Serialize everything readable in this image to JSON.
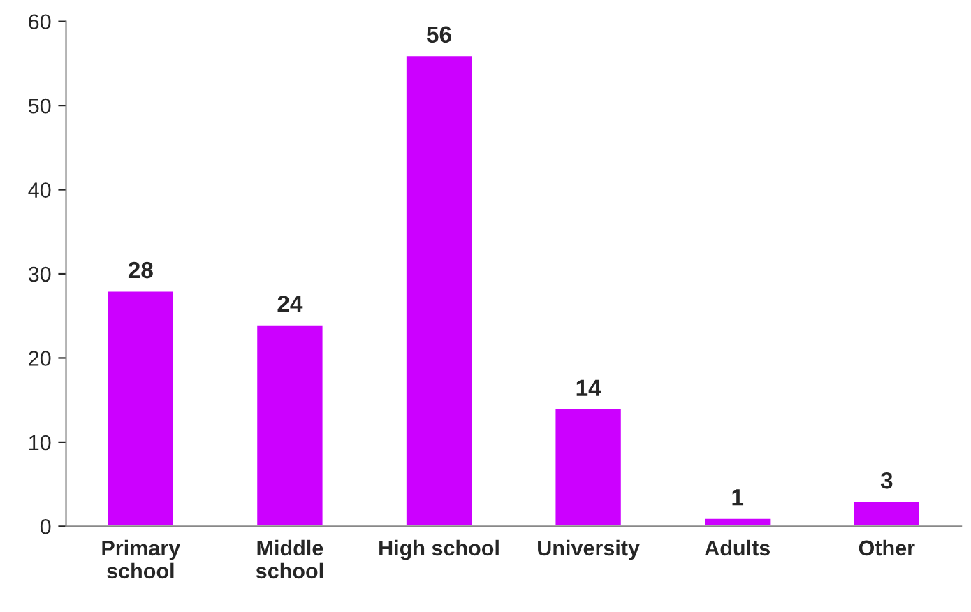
{
  "chart_data": {
    "type": "bar",
    "categories": [
      "Primary\nschool",
      "Middle\nschool",
      "High school",
      "University",
      "Adults",
      "Other"
    ],
    "values": [
      28,
      24,
      56,
      14,
      1,
      3
    ],
    "color": "#cc00ff",
    "ylim": [
      0,
      60
    ],
    "yticks": [
      0,
      10,
      20,
      30,
      40,
      50,
      60
    ],
    "data_labels": true,
    "grid": false,
    "legend": false
  }
}
